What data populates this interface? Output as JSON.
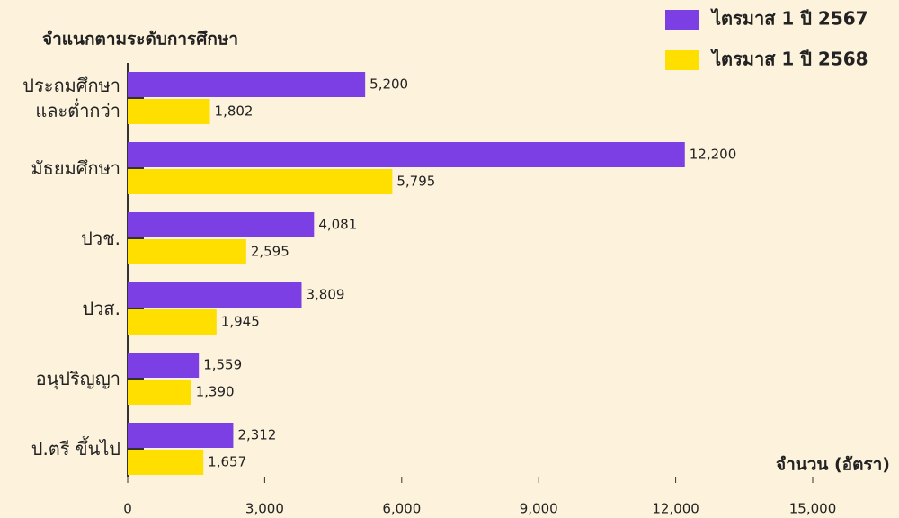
{
  "chart_data": {
    "type": "bar",
    "orientation": "horizontal",
    "title": "จำแนกตามระดับการศึกษา",
    "xlabel": "จำนวน (อัตรา)",
    "categories": [
      "ประถมศึกษา\nและต่ำกว่า",
      "มัธยมศึกษา",
      "ปวช.",
      "ปวส.",
      "อนุปริญญา",
      "ป.ตรี ขึ้นไป"
    ],
    "series": [
      {
        "name": "ไตรมาส 1 ปี 2567",
        "color": "#7b3fe4",
        "values": [
          5200,
          12200,
          4081,
          3809,
          1559,
          2312
        ],
        "value_labels": [
          "5,200",
          "12,200",
          "4,081",
          "3,809",
          "1,559",
          "2,312"
        ]
      },
      {
        "name": "ไตรมาส 1 ปี 2568",
        "color": "#ffdf00",
        "values": [
          1802,
          5795,
          2595,
          1945,
          1390,
          1657
        ],
        "value_labels": [
          "1,802",
          "5,795",
          "2,595",
          "1,945",
          "1,390",
          "1,657"
        ]
      }
    ],
    "xlim": [
      0,
      15000
    ],
    "xticks": [
      0,
      {
        "value": 3000,
        "label": "3,000"
      },
      {
        "value": 6000,
        "label": "6,000"
      },
      {
        "value": 9000,
        "label": "9,000"
      },
      {
        "value": 12000,
        "label": "12,000"
      },
      {
        "value": 15000,
        "label": "15,000"
      }
    ],
    "legend": "top-right"
  }
}
